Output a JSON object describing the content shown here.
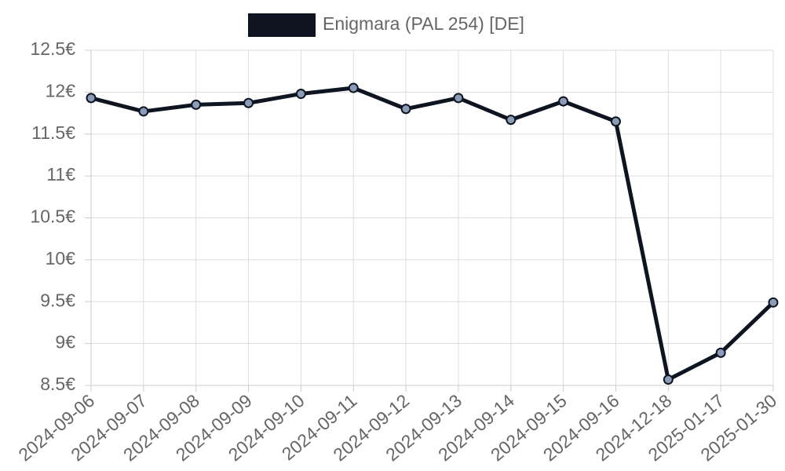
{
  "chart_data": {
    "type": "line",
    "title": "",
    "xlabel": "",
    "ylabel": "",
    "categories": [
      "2024-09-06",
      "2024-09-07",
      "2024-09-08",
      "2024-09-09",
      "2024-09-10",
      "2024-09-11",
      "2024-09-12",
      "2024-09-13",
      "2024-09-14",
      "2024-09-15",
      "2024-09-16",
      "2024-12-18",
      "2025-01-17",
      "2025-01-30"
    ],
    "series": [
      {
        "name": "Enigmara (PAL 254) [DE]",
        "color": "#0e1420",
        "point_fill": "#8a9cb8",
        "values": [
          11.93,
          11.77,
          11.85,
          11.87,
          11.98,
          12.05,
          11.8,
          11.93,
          11.67,
          11.89,
          11.65,
          8.57,
          8.89,
          9.49
        ]
      }
    ],
    "ylim": [
      8.5,
      12.5
    ],
    "yticks": [
      8.5,
      9,
      9.5,
      10,
      10.5,
      11,
      11.5,
      12,
      12.5
    ],
    "ytick_labels": [
      "8.5€",
      "9€",
      "9.5€",
      "10€",
      "10.5€",
      "11€",
      "11.5€",
      "12€",
      "12.5€"
    ],
    "grid": true,
    "legend_position": "top-center"
  }
}
